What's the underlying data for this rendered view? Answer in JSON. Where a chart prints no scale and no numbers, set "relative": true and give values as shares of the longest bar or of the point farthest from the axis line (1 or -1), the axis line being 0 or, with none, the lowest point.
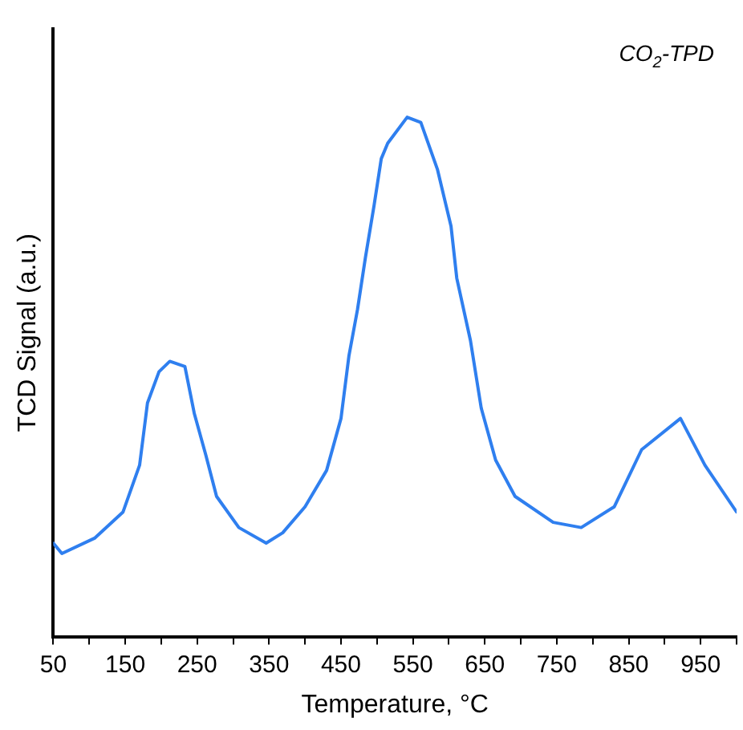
{
  "chart_data": {
    "type": "line",
    "xlabel": "Temperature, °C",
    "ylabel": "TCD Signal (a.u.)",
    "annotations": [
      "CO$_{2}$-TPD"
    ],
    "relative": true,
    "grid": false,
    "legend": false,
    "marker": "none",
    "line_style": "solid",
    "tick_labels": "x",
    "xlim": [
      50,
      1000
    ],
    "xticks": [
      50,
      {
        "value": 100,
        "label": null
      },
      150,
      {
        "value": 200,
        "label": null
      },
      250,
      {
        "value": 300,
        "label": null
      },
      350,
      {
        "value": 400,
        "label": null
      },
      450,
      {
        "value": 500,
        "label": null
      },
      550,
      {
        "value": 600,
        "label": null
      },
      650,
      {
        "value": 700,
        "label": null
      },
      750,
      {
        "value": 800,
        "label": null
      },
      850,
      {
        "value": 900,
        "label": null
      },
      950,
      {
        "value": 1000,
        "label": null
      }
    ],
    "series": [
      {
        "color": "#2f7fef",
        "x": [
          50,
          62,
          108,
          147,
          170,
          181,
          197,
          212,
          233,
          246,
          262,
          277,
          308,
          346,
          369,
          400,
          430,
          450,
          461,
          473,
          484,
          496,
          506,
          515,
          542,
          561,
          584,
          603,
          611,
          630,
          645,
          665,
          692,
          745,
          784,
          830,
          868,
          922,
          956,
          1000
        ],
        "values": [
          0.18,
          0.16,
          0.19,
          0.24,
          0.33,
          0.45,
          0.51,
          0.53,
          0.52,
          0.43,
          0.35,
          0.27,
          0.21,
          0.18,
          0.2,
          0.25,
          0.32,
          0.42,
          0.54,
          0.63,
          0.73,
          0.83,
          0.92,
          0.95,
          1,
          0.99,
          0.9,
          0.79,
          0.69,
          0.57,
          0.44,
          0.34,
          0.27,
          0.22,
          0.21,
          0.25,
          0.36,
          0.42,
          0.33,
          0.24
        ]
      }
    ]
  }
}
